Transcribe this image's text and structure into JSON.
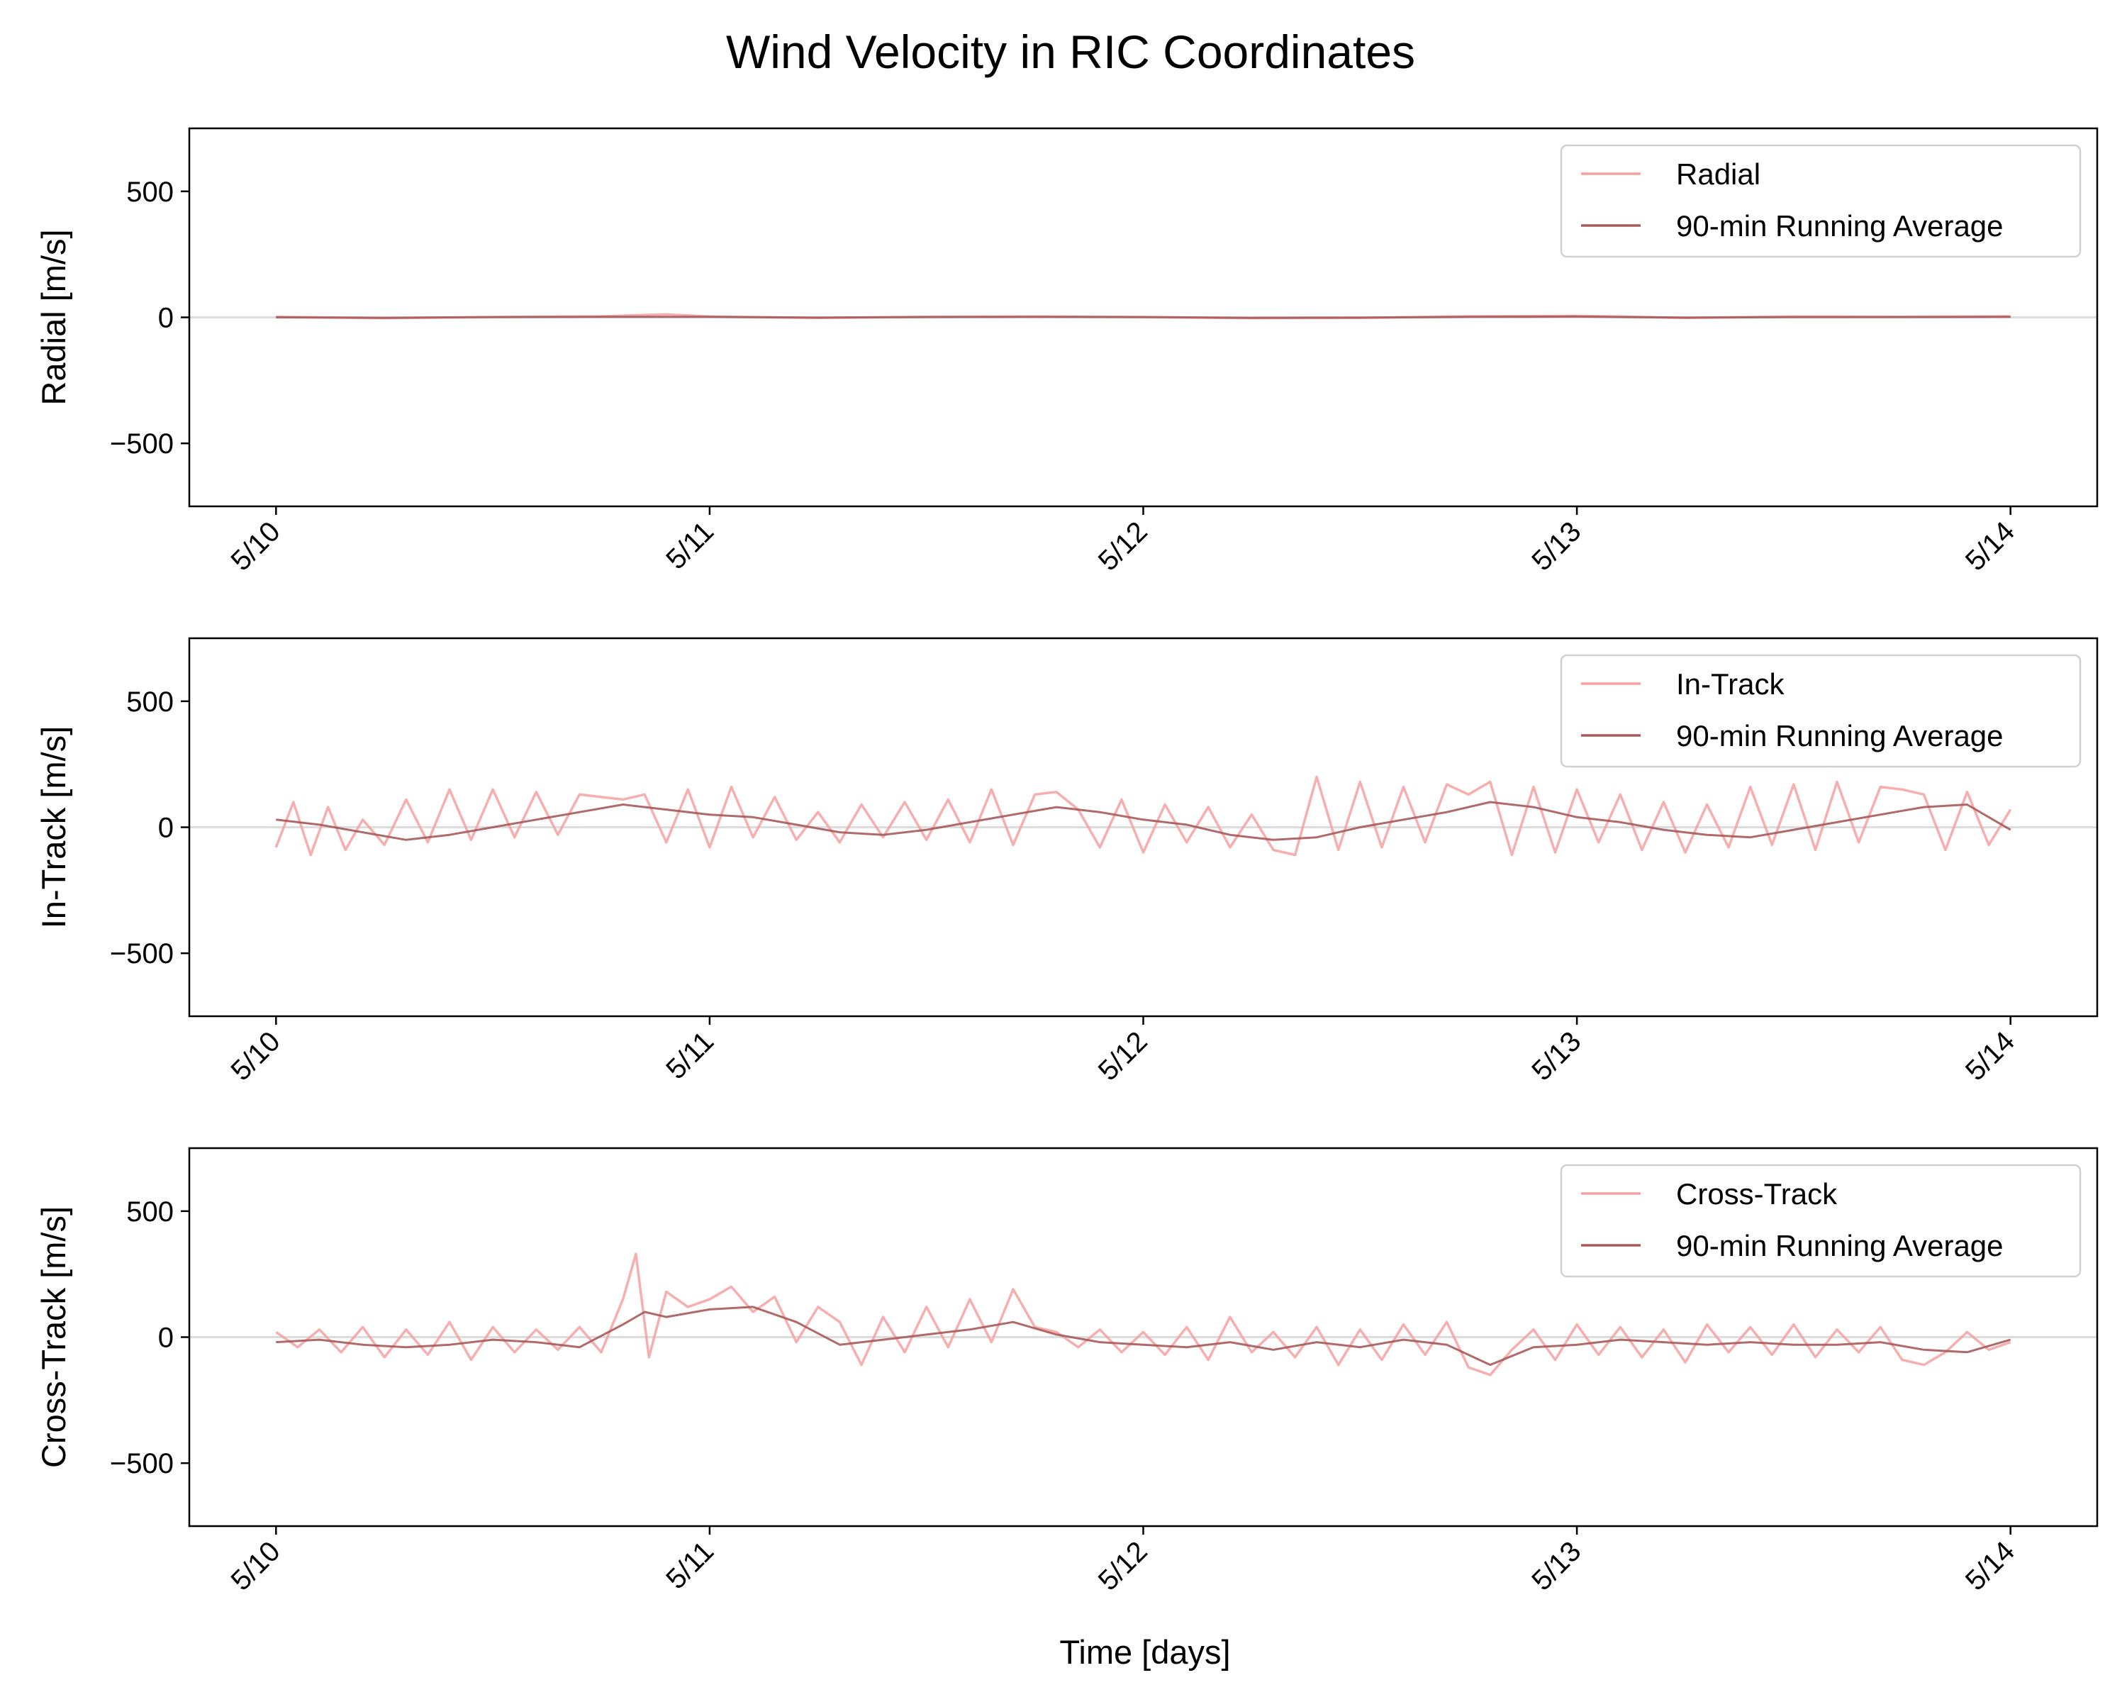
{
  "figure": {
    "title": "Wind Velocity in RIC Coordinates",
    "xlabel": "Time [days]"
  },
  "colors": {
    "raw": "#f4a0a0",
    "average": "#a85a5a",
    "axis": "#000000",
    "zero_line": "#dddddd"
  },
  "chart_data": [
    {
      "type": "line",
      "ylabel": "Radial [m/s]",
      "ylim": [
        -750,
        750
      ],
      "yticks": [
        500,
        0,
        -500
      ],
      "ytick_labels": [
        "500",
        "0",
        "−500"
      ],
      "xlim_days": [
        9.8,
        14.2
      ],
      "xticks_days": [
        10,
        11,
        12,
        13,
        14
      ],
      "xtick_labels": [
        "5/10",
        "5/11",
        "5/12",
        "5/13",
        "5/14"
      ],
      "legend_position": "top-right",
      "zero_line": true,
      "grid": false,
      "series": [
        {
          "name": "Radial",
          "role": "raw",
          "x_days": [
            10.0,
            10.25,
            10.5,
            10.75,
            10.9,
            11.0,
            11.25,
            11.5,
            11.75,
            12.0,
            12.25,
            12.5,
            12.75,
            13.0,
            13.25,
            13.5,
            13.75,
            14.0
          ],
          "y": [
            2,
            -3,
            1,
            4,
            12,
            3,
            -2,
            2,
            3,
            1,
            -3,
            -2,
            4,
            6,
            -2,
            3,
            2,
            4
          ]
        },
        {
          "name": "90-min Running Average",
          "role": "average",
          "x_days": [
            10.0,
            10.25,
            10.5,
            10.75,
            11.0,
            11.25,
            11.5,
            11.75,
            12.0,
            12.25,
            12.5,
            12.75,
            13.0,
            13.25,
            13.5,
            13.75,
            14.0
          ],
          "y": [
            0,
            -2,
            1,
            2,
            2,
            -1,
            1,
            2,
            1,
            -2,
            -1,
            2,
            3,
            -1,
            1,
            1,
            2
          ]
        }
      ]
    },
    {
      "type": "line",
      "ylabel": "In-Track [m/s]",
      "ylim": [
        -750,
        750
      ],
      "yticks": [
        500,
        0,
        -500
      ],
      "ytick_labels": [
        "500",
        "0",
        "−500"
      ],
      "xlim_days": [
        9.8,
        14.2
      ],
      "xticks_days": [
        10,
        11,
        12,
        13,
        14
      ],
      "xtick_labels": [
        "5/10",
        "5/11",
        "5/12",
        "5/13",
        "5/14"
      ],
      "legend_position": "top-right",
      "zero_line": true,
      "grid": false,
      "series": [
        {
          "name": "In-Track",
          "role": "raw",
          "x_days": [
            10.0,
            10.04,
            10.08,
            10.12,
            10.16,
            10.2,
            10.25,
            10.3,
            10.35,
            10.4,
            10.45,
            10.5,
            10.55,
            10.6,
            10.65,
            10.7,
            10.75,
            10.8,
            10.85,
            10.9,
            10.95,
            11.0,
            11.05,
            11.1,
            11.15,
            11.2,
            11.25,
            11.3,
            11.35,
            11.4,
            11.45,
            11.5,
            11.55,
            11.6,
            11.65,
            11.7,
            11.75,
            11.8,
            11.85,
            11.9,
            11.95,
            12.0,
            12.05,
            12.1,
            12.15,
            12.2,
            12.25,
            12.3,
            12.35,
            12.4,
            12.45,
            12.5,
            12.55,
            12.6,
            12.65,
            12.7,
            12.75,
            12.8,
            12.85,
            12.9,
            12.95,
            13.0,
            13.05,
            13.1,
            13.15,
            13.2,
            13.25,
            13.3,
            13.35,
            13.4,
            13.45,
            13.5,
            13.55,
            13.6,
            13.65,
            13.7,
            13.75,
            13.8,
            13.85,
            13.9,
            13.95,
            14.0
          ],
          "y": [
            -80,
            100,
            -110,
            80,
            -90,
            30,
            -70,
            110,
            -60,
            150,
            -50,
            150,
            -40,
            140,
            -30,
            130,
            120,
            110,
            130,
            -60,
            150,
            -80,
            160,
            -40,
            120,
            -50,
            60,
            -60,
            90,
            -40,
            100,
            -50,
            110,
            -60,
            150,
            -70,
            130,
            140,
            70,
            -80,
            110,
            -100,
            90,
            -60,
            80,
            -80,
            50,
            -90,
            -110,
            200,
            -90,
            180,
            -80,
            160,
            -60,
            170,
            130,
            180,
            -110,
            160,
            -100,
            150,
            -60,
            130,
            -90,
            100,
            -100,
            90,
            -80,
            160,
            -70,
            170,
            -90,
            180,
            -60,
            160,
            150,
            130,
            -90,
            140,
            -70,
            70
          ]
        },
        {
          "name": "90-min Running Average",
          "role": "average",
          "x_days": [
            10.0,
            10.1,
            10.2,
            10.3,
            10.4,
            10.5,
            10.6,
            10.7,
            10.8,
            10.9,
            11.0,
            11.1,
            11.2,
            11.3,
            11.4,
            11.5,
            11.6,
            11.7,
            11.8,
            11.9,
            12.0,
            12.1,
            12.2,
            12.3,
            12.4,
            12.5,
            12.6,
            12.7,
            12.8,
            12.9,
            13.0,
            13.1,
            13.2,
            13.3,
            13.4,
            13.5,
            13.6,
            13.7,
            13.8,
            13.9,
            14.0
          ],
          "y": [
            30,
            10,
            -20,
            -50,
            -30,
            0,
            30,
            60,
            90,
            70,
            50,
            40,
            10,
            -20,
            -30,
            -10,
            20,
            50,
            80,
            60,
            30,
            10,
            -30,
            -50,
            -40,
            0,
            30,
            60,
            100,
            80,
            40,
            20,
            -10,
            -30,
            -40,
            -10,
            20,
            50,
            80,
            90,
            -10
          ]
        }
      ]
    },
    {
      "type": "line",
      "ylabel": "Cross-Track [m/s]",
      "ylim": [
        -750,
        750
      ],
      "yticks": [
        500,
        0,
        -500
      ],
      "ytick_labels": [
        "500",
        "0",
        "−500"
      ],
      "xlim_days": [
        9.8,
        14.2
      ],
      "xticks_days": [
        10,
        11,
        12,
        13,
        14
      ],
      "xtick_labels": [
        "5/10",
        "5/11",
        "5/12",
        "5/13",
        "5/14"
      ],
      "legend_position": "top-right",
      "zero_line": true,
      "grid": false,
      "series": [
        {
          "name": "Cross-Track",
          "role": "raw",
          "x_days": [
            10.0,
            10.05,
            10.1,
            10.15,
            10.2,
            10.25,
            10.3,
            10.35,
            10.4,
            10.45,
            10.5,
            10.55,
            10.6,
            10.65,
            10.7,
            10.75,
            10.8,
            10.83,
            10.86,
            10.9,
            10.95,
            11.0,
            11.05,
            11.1,
            11.15,
            11.2,
            11.25,
            11.3,
            11.35,
            11.4,
            11.45,
            11.5,
            11.55,
            11.6,
            11.65,
            11.7,
            11.75,
            11.8,
            11.85,
            11.9,
            11.95,
            12.0,
            12.05,
            12.1,
            12.15,
            12.2,
            12.25,
            12.3,
            12.35,
            12.4,
            12.45,
            12.5,
            12.55,
            12.6,
            12.65,
            12.7,
            12.75,
            12.8,
            12.85,
            12.9,
            12.95,
            13.0,
            13.05,
            13.1,
            13.15,
            13.2,
            13.25,
            13.3,
            13.35,
            13.4,
            13.45,
            13.5,
            13.55,
            13.6,
            13.65,
            13.7,
            13.75,
            13.8,
            13.85,
            13.9,
            13.95,
            14.0
          ],
          "y": [
            20,
            -40,
            30,
            -60,
            40,
            -80,
            30,
            -70,
            60,
            -90,
            40,
            -60,
            30,
            -50,
            40,
            -60,
            150,
            330,
            -80,
            180,
            120,
            150,
            200,
            100,
            160,
            -20,
            120,
            60,
            -110,
            80,
            -60,
            120,
            -40,
            150,
            -20,
            190,
            40,
            20,
            -40,
            30,
            -60,
            20,
            -70,
            40,
            -90,
            80,
            -60,
            20,
            -80,
            40,
            -110,
            30,
            -90,
            50,
            -70,
            60,
            -120,
            -150,
            -50,
            30,
            -90,
            50,
            -70,
            40,
            -80,
            30,
            -100,
            50,
            -60,
            40,
            -70,
            50,
            -80,
            30,
            -60,
            40,
            -90,
            -110,
            -60,
            20,
            -50,
            -20
          ]
        },
        {
          "name": "90-min Running Average",
          "role": "average",
          "x_days": [
            10.0,
            10.1,
            10.2,
            10.3,
            10.4,
            10.5,
            10.6,
            10.7,
            10.8,
            10.85,
            10.9,
            11.0,
            11.1,
            11.2,
            11.3,
            11.4,
            11.5,
            11.6,
            11.7,
            11.8,
            11.9,
            12.0,
            12.1,
            12.2,
            12.3,
            12.4,
            12.5,
            12.6,
            12.7,
            12.8,
            12.9,
            13.0,
            13.1,
            13.2,
            13.3,
            13.4,
            13.5,
            13.6,
            13.7,
            13.8,
            13.9,
            14.0
          ],
          "y": [
            -20,
            -10,
            -30,
            -40,
            -30,
            -10,
            -20,
            -40,
            50,
            100,
            80,
            110,
            120,
            60,
            -30,
            -10,
            10,
            30,
            60,
            10,
            -20,
            -30,
            -40,
            -20,
            -50,
            -20,
            -40,
            -10,
            -30,
            -110,
            -40,
            -30,
            -10,
            -20,
            -30,
            -20,
            -30,
            -30,
            -20,
            -50,
            -60,
            -10
          ]
        }
      ]
    }
  ]
}
